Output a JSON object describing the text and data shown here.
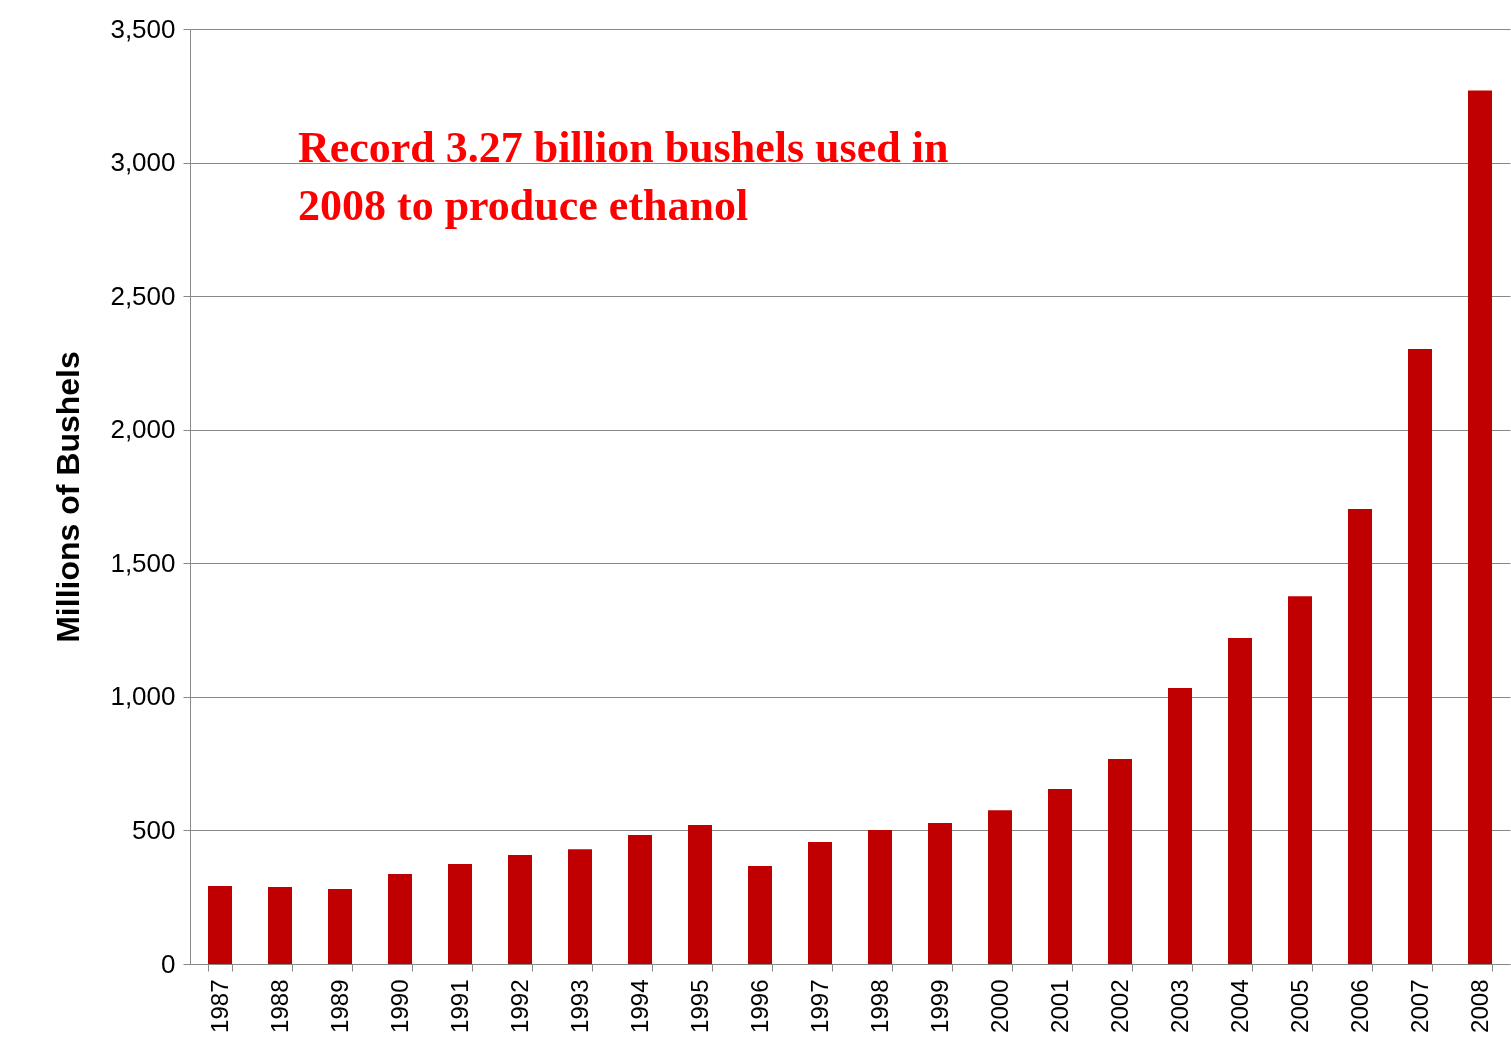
{
  "chart_data": {
    "type": "bar",
    "ylabel": "Millions of Bushels",
    "categories": [
      "1987",
      "1988",
      "1989",
      "1990",
      "1991",
      "1992",
      "1993",
      "1994",
      "1995",
      "1996",
      "1997",
      "1998",
      "1999",
      "2000",
      "2001",
      "2002",
      "2003",
      "2004",
      "2005",
      "2006",
      "2007",
      "2008"
    ],
    "values": [
      292,
      288,
      281,
      337,
      374,
      408,
      430,
      483,
      520,
      367,
      457,
      502,
      528,
      576,
      655,
      767,
      1033,
      1220,
      1377,
      1703,
      2302,
      3270
    ],
    "color": "#c00000",
    "ylim": [
      0,
      3500
    ],
    "yticks": [
      0,
      500,
      {
        "value": 1000,
        "label": "1,000"
      },
      {
        "value": 1500,
        "label": "1,500"
      },
      {
        "value": 2000,
        "label": "2,000"
      },
      {
        "value": 2500,
        "label": "2,500"
      },
      {
        "value": 3000,
        "label": "3,000"
      },
      {
        "value": 3500,
        "label": "3,500"
      }
    ],
    "grid": "y",
    "annotations": [
      "Record 3.27 billion bushels used in\n2008 to produce ethanol"
    ]
  }
}
